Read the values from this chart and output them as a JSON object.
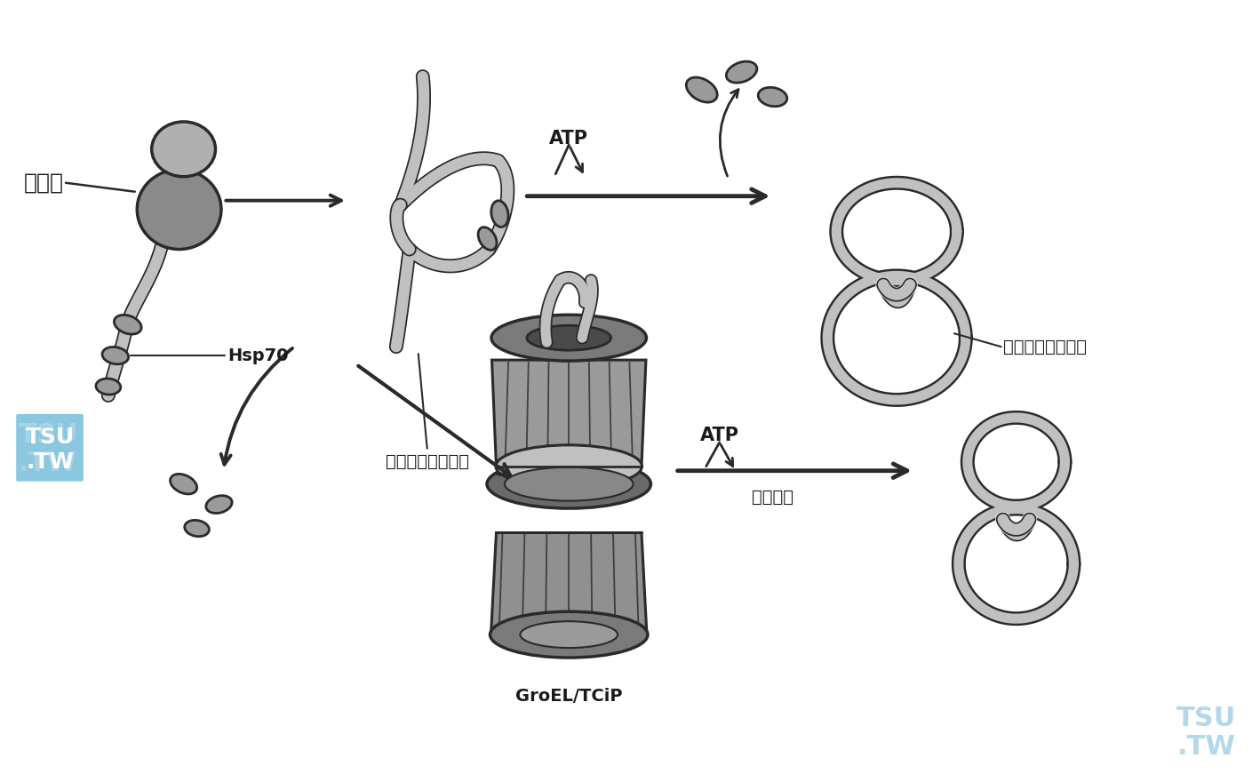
{
  "bg_color": "#ffffff",
  "text_color": "#1a1a1a",
  "edge_color": "#2a2a2a",
  "gray_dark": "#7a7a7a",
  "gray_mid": "#9a9a9a",
  "gray_light": "#c0c0c0",
  "gray_lighter": "#d8d8d8",
  "label_ribosome": "核糖体",
  "label_hsp70": "Hsp70",
  "label_partial": "部分折叠的蛋白质",
  "label_correct": "正确折叠的蛋白质",
  "label_groel": "GroEL/TCiP",
  "label_atp1": "ATP",
  "label_atp2": "ATP",
  "label_conformchange": "构象改变",
  "watermark_color": "#aad4e8",
  "figwidth": 14.18,
  "figheight": 8.8,
  "dpi": 100
}
